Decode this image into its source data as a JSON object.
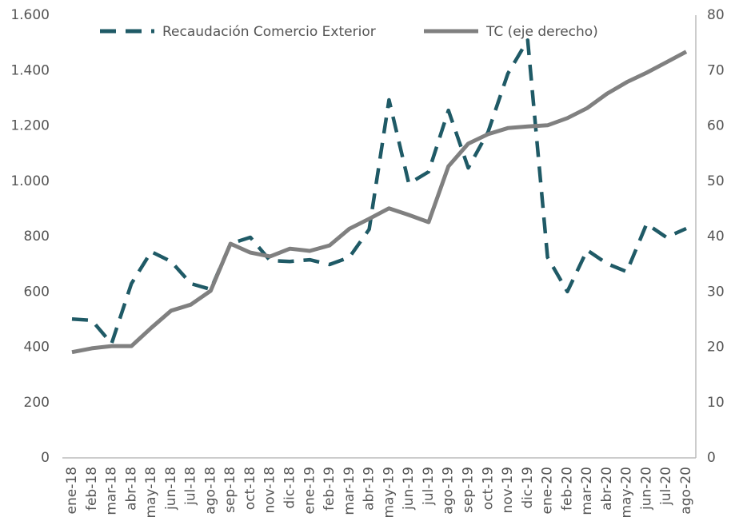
{
  "chart_data": {
    "type": "line",
    "categories": [
      "ene-18",
      "feb-18",
      "mar-18",
      "abr-18",
      "may-18",
      "jun-18",
      "jul-18",
      "ago-18",
      "sep-18",
      "oct-18",
      "nov-18",
      "dic-18",
      "ene-19",
      "feb-19",
      "mar-19",
      "abr-19",
      "may-19",
      "jun-19",
      "jul-19",
      "ago-19",
      "sep-19",
      "oct-19",
      "nov-19",
      "dic-19",
      "ene-20",
      "feb-20",
      "mar-20",
      "abr-20",
      "may-20",
      "jun-20",
      "jul-20",
      "ago-20"
    ],
    "series": [
      {
        "name": "Recaudación Comercio Exterior",
        "color": "#1f5a66",
        "dashed": true,
        "values": [
          502,
          497,
          413,
          630,
          745,
          710,
          630,
          609,
          774,
          797,
          713,
          710,
          716,
          699,
          725,
          826,
          1294,
          991,
          1034,
          1256,
          1048,
          1178,
          1389,
          1510,
          725,
          601,
          751,
          702,
          673,
          846,
          797,
          829
        ]
      },
      {
        "name": "TC (eje derecho)",
        "color": "#808080",
        "axis": "y2",
        "values": [
          19.1,
          19.8,
          20.2,
          20.2,
          23.5,
          26.6,
          27.7,
          30.2,
          38.7,
          37.1,
          36.4,
          37.8,
          37.4,
          38.4,
          41.4,
          43.2,
          45.1,
          43.9,
          42.6,
          52.7,
          56.8,
          58.5,
          59.6,
          59.9,
          60.1,
          61.4,
          63.2,
          65.8,
          67.9,
          69.6,
          71.5,
          73.4
        ]
      }
    ],
    "ylim": [
      0,
      1600
    ],
    "yticks": [
      0,
      200,
      400,
      600,
      800,
      {
        "value": 1000,
        "label": "1.000"
      },
      {
        "value": 1200,
        "label": "1.200"
      },
      {
        "value": 1400,
        "label": "1.400"
      },
      {
        "value": 1600,
        "label": "1.600"
      }
    ],
    "y2lim": [
      0,
      80
    ],
    "y2ticks": [
      0,
      10,
      20,
      30,
      40,
      50,
      60,
      70,
      80
    ],
    "grid": false,
    "legend": "top"
  }
}
